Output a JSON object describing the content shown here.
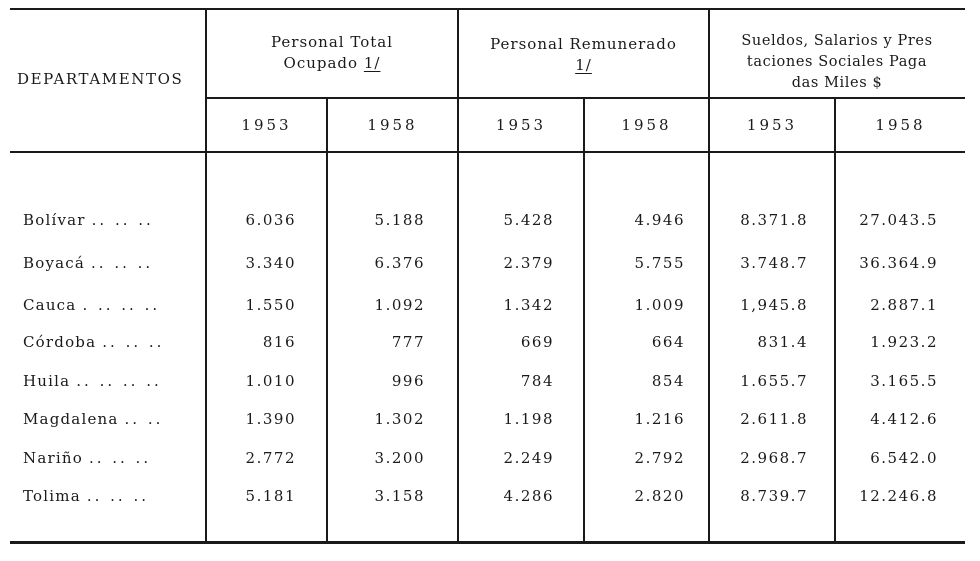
{
  "table": {
    "stub_header": "DEPARTAMENTOS",
    "groups": [
      {
        "line1": "Personal  Total",
        "line2": "Ocupado ",
        "note": "1/",
        "line3": ""
      },
      {
        "line1": "Personal  Remunerado",
        "line2": "",
        "note": "1/",
        "line3": ""
      },
      {
        "line1": "Sueldos, Salarios y Pres",
        "line2": "taciones Sociales Paga",
        "note": "",
        "line3": "das Miles  $"
      }
    ],
    "years": [
      "1953",
      "1958",
      "1953",
      "1958",
      "1953",
      "1958"
    ],
    "rows": [
      {
        "name": "Bolívar",
        "dots": "..  ..  ..",
        "values": [
          "6.036",
          "5.188",
          "5.428",
          "4.946",
          "8.371.8",
          "27.043.5"
        ]
      },
      {
        "name": "Boyacá",
        "dots": "..  ..  ..",
        "values": [
          "3.340",
          "6.376",
          "2.379",
          "5.755",
          "3.748.7",
          "36.364.9"
        ]
      },
      {
        "name": "Cauca",
        "dots": ".  ..  ..  ..",
        "values": [
          "1.550",
          "1.092",
          "1.342",
          "1.009",
          "1,945.8",
          "2.887.1"
        ]
      },
      {
        "name": "Córdoba",
        "dots": "..  ..  ..",
        "values": [
          "816",
          "777",
          "669",
          "664",
          "831.4",
          "1.923.2"
        ]
      },
      {
        "name": "Huila",
        "dots": "..  ..  ..  ..",
        "values": [
          "1.010",
          "996",
          "784",
          "854",
          "1.655.7",
          "3.165.5"
        ]
      },
      {
        "name": "Magdalena",
        "dots": "..  ..",
        "values": [
          "1.390",
          "1.302",
          "1.198",
          "1.216",
          "2.611.8",
          "4.412.6"
        ]
      },
      {
        "name": "Nariño",
        "dots": "..  ..  ..",
        "values": [
          "2.772",
          "3.200",
          "2.249",
          "2.792",
          "2.968.7",
          "6.542.0"
        ]
      },
      {
        "name": "Tolima",
        "dots": "..  ..  ..",
        "values": [
          "5.181",
          "3.158",
          "4.286",
          "2.820",
          "8.739.7",
          "12.246.8"
        ]
      }
    ]
  }
}
